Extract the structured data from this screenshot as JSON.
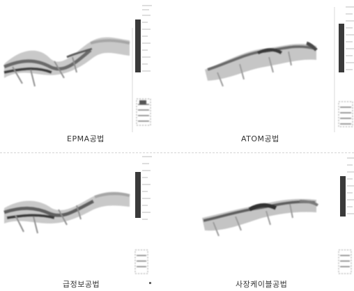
{
  "panels": [
    {
      "caption": "EPMA공법"
    },
    {
      "caption": "ATOM공법"
    },
    {
      "caption": "급정보공법"
    },
    {
      "caption": "사장케이블공법"
    }
  ]
}
